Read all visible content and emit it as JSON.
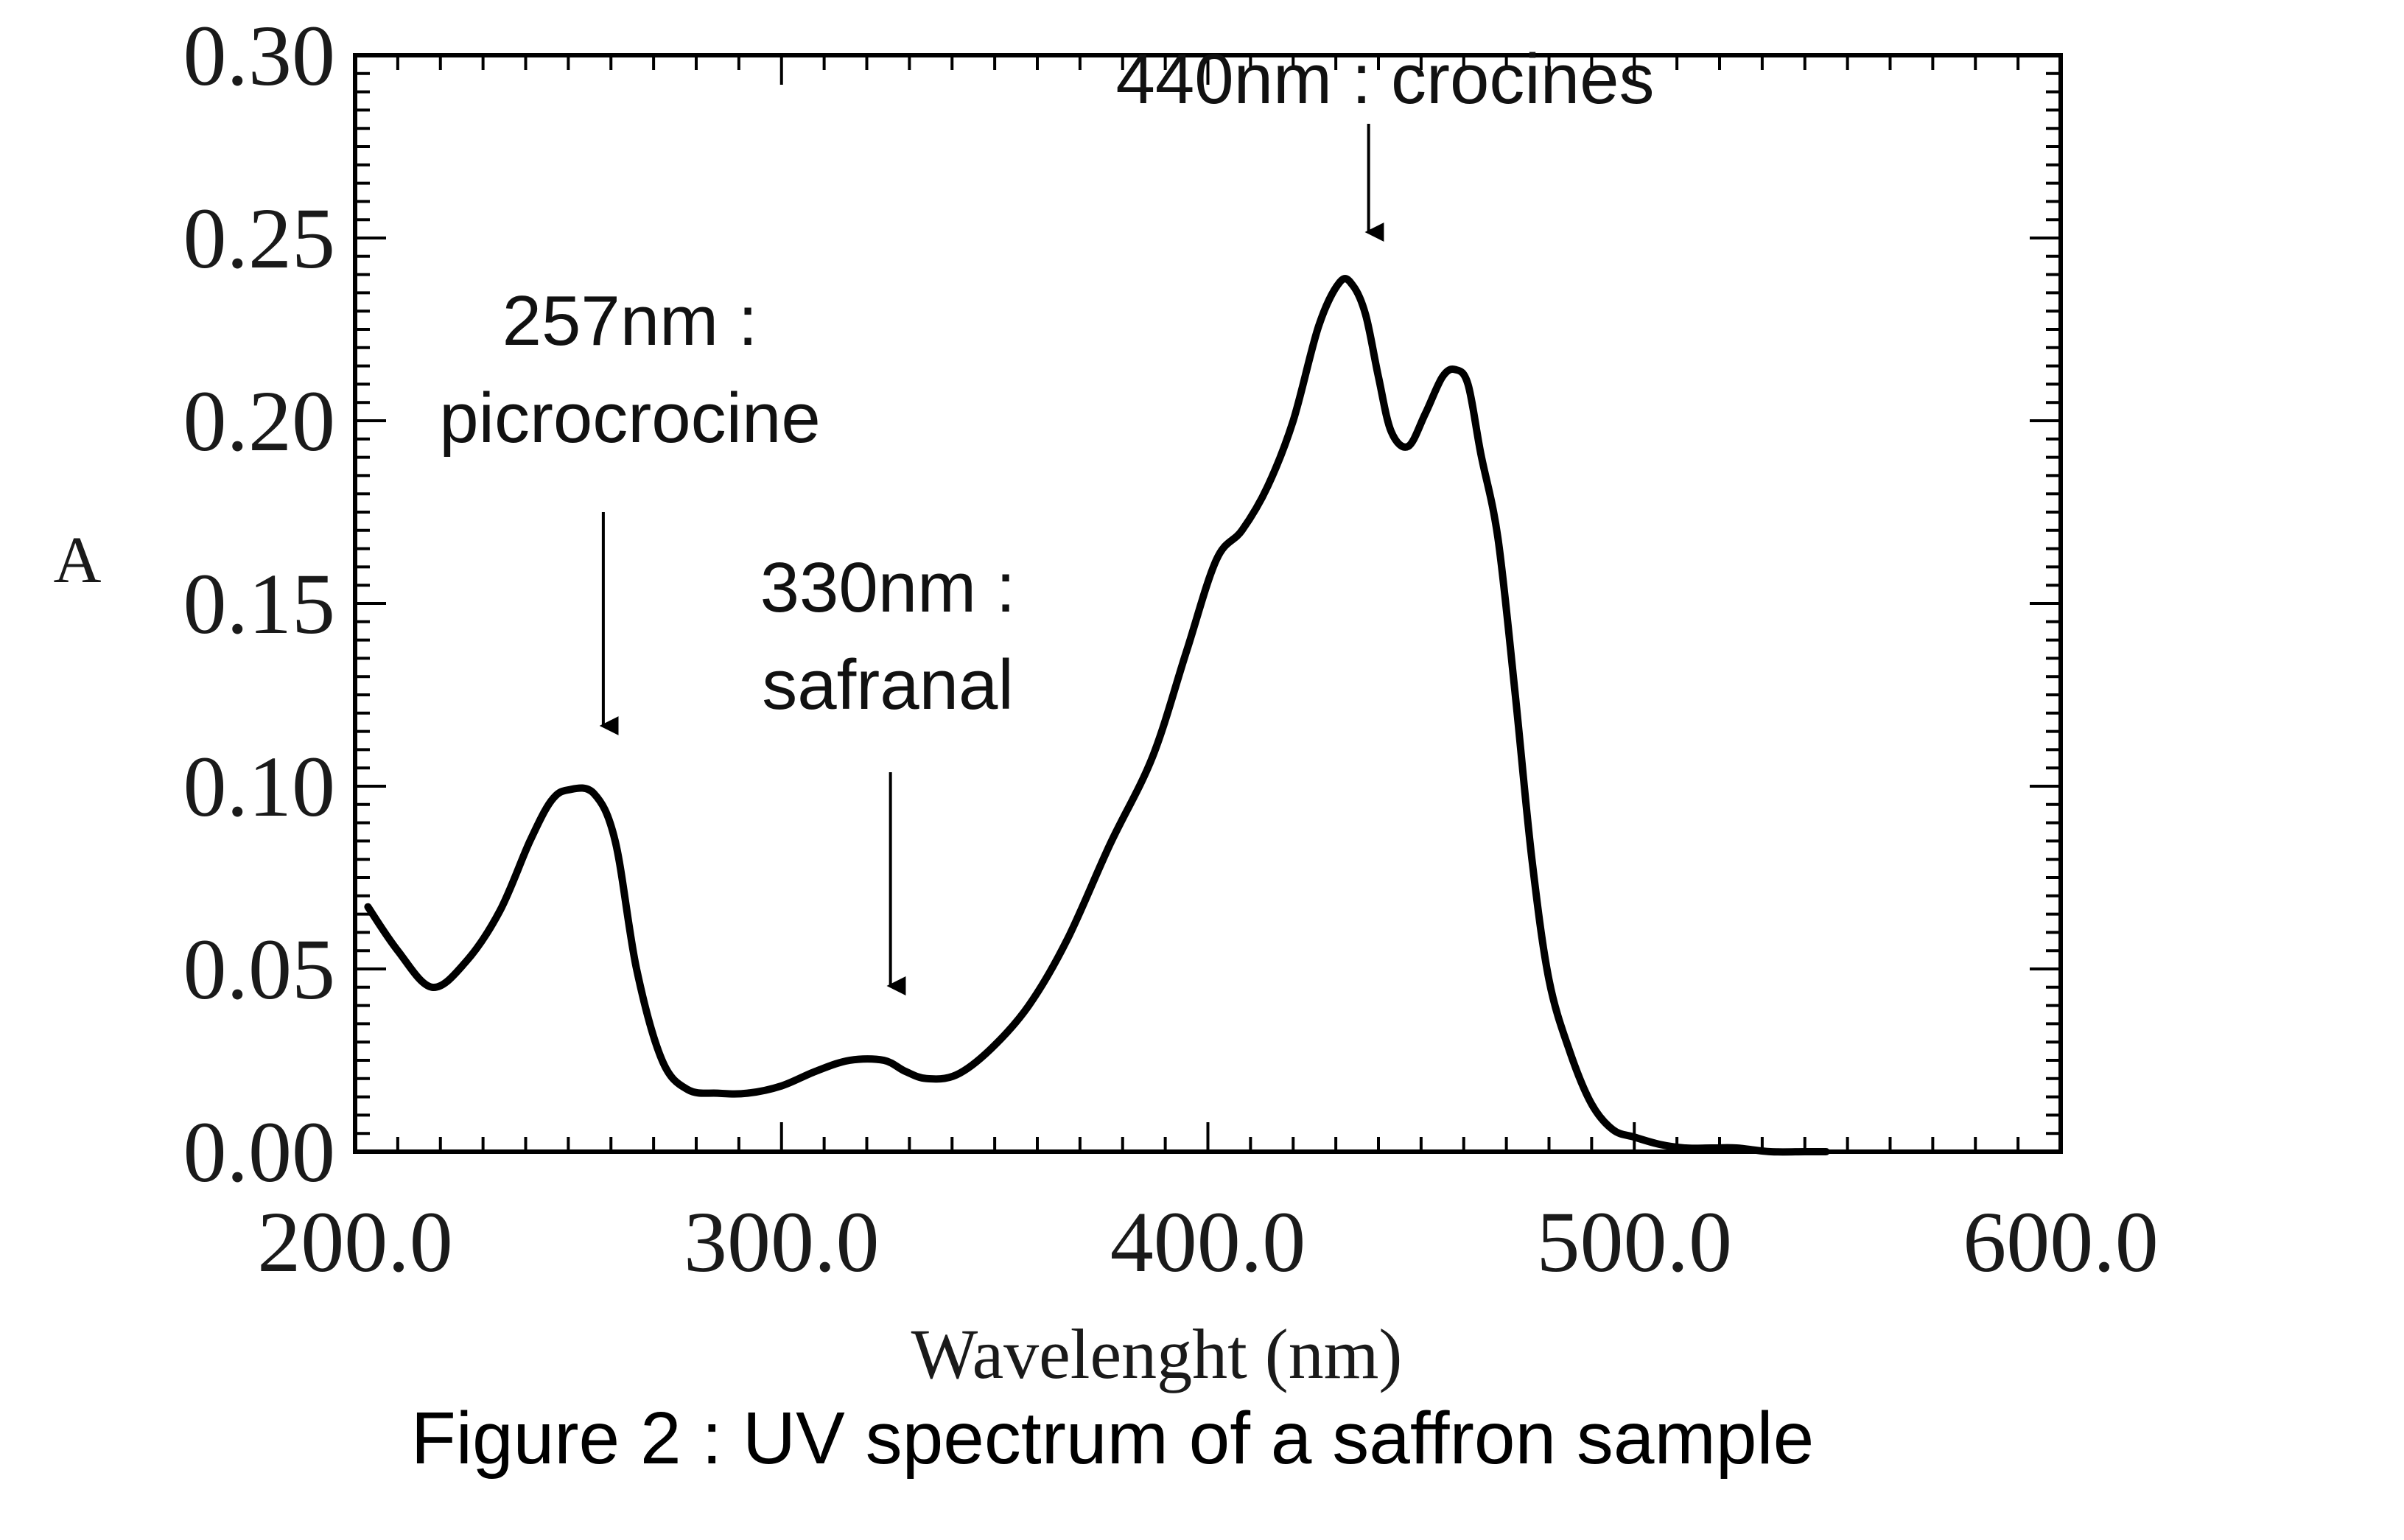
{
  "chart_data": {
    "type": "line",
    "title": "",
    "xlabel": "Wavelenght (nm)",
    "ylabel": "A",
    "xlim": [
      200,
      600
    ],
    "ylim": [
      0,
      0.3
    ],
    "x_ticks": [
      "200.0",
      "300.0",
      "400.0",
      "500.0",
      "600.0"
    ],
    "y_ticks": [
      "0.00",
      "0.05",
      "0.10",
      "0.15",
      "0.20",
      "0.25",
      "0.30"
    ],
    "grid": false,
    "legend": "none",
    "line_color": "#000000",
    "series": [
      {
        "x": [
          203,
          210,
          218,
          226,
          234,
          241,
          246,
          250,
          256,
          261,
          266,
          272,
          278,
          285,
          292,
          300,
          308,
          316,
          324,
          329,
          334,
          341,
          349,
          358,
          367,
          377,
          387,
          395,
          402,
          408,
          414,
          420,
          426,
          431,
          434,
          437,
          440,
          443,
          447,
          451,
          455,
          458,
          461,
          464,
          468,
          472,
          476,
          480,
          485,
          490,
          495,
          500,
          506,
          512,
          518,
          524,
          532,
          540,
          545
        ],
        "y": [
          0.067,
          0.055,
          0.045,
          0.052,
          0.066,
          0.085,
          0.096,
          0.099,
          0.098,
          0.085,
          0.05,
          0.025,
          0.017,
          0.016,
          0.016,
          0.018,
          0.022,
          0.025,
          0.025,
          0.022,
          0.02,
          0.021,
          0.028,
          0.04,
          0.058,
          0.084,
          0.108,
          0.137,
          0.162,
          0.17,
          0.182,
          0.2,
          0.226,
          0.238,
          0.237,
          0.229,
          0.212,
          0.197,
          0.193,
          0.202,
          0.212,
          0.214,
          0.21,
          0.191,
          0.168,
          0.126,
          0.08,
          0.047,
          0.027,
          0.013,
          0.006,
          0.004,
          0.002,
          0.001,
          0.001,
          0.001,
          0.0,
          0.0,
          0.0
        ]
      }
    ]
  },
  "annotations": [
    {
      "lines": [
        "257nm :",
        "picrocrocine"
      ],
      "x": 257,
      "y": 0.099
    },
    {
      "lines": [
        "330nm :",
        "safranal"
      ],
      "x": 324,
      "y": 0.025
    },
    {
      "lines": [
        "440nm : crocines"
      ],
      "x": 437,
      "y": 0.238
    }
  ],
  "caption": "Figure 2 : UV spectrum of a saffron sample"
}
